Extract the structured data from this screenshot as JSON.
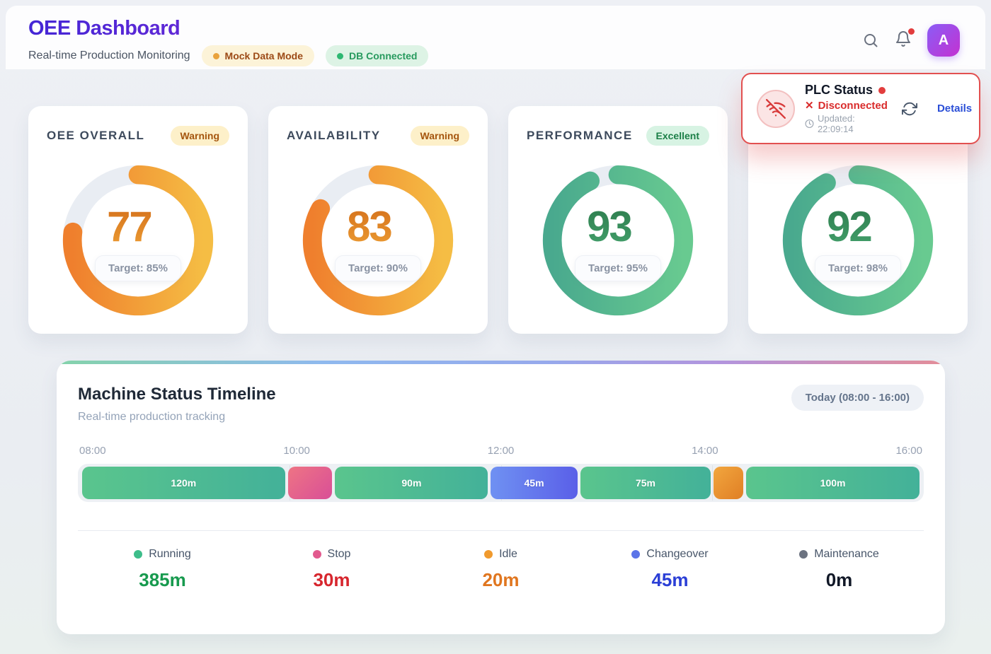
{
  "header": {
    "title": "OEE Dashboard",
    "subtitle": "Real-time Production Monitoring",
    "mock_badge": "Mock Data Mode",
    "db_badge": "DB Connected",
    "icons": [
      "search-icon",
      "bell-icon"
    ],
    "avatar_letter": "A"
  },
  "plc": {
    "icon": "wifi-off-icon",
    "title": "PLC Status",
    "status": "Disconnected",
    "updated": "Updated: 22:09:14",
    "details_label": "Details"
  },
  "kpis": [
    {
      "title": "OEE OVERALL",
      "badge": "Warning",
      "value": 77,
      "unit": "%",
      "target": "Target: 85%",
      "theme": "orange"
    },
    {
      "title": "AVAILABILITY",
      "badge": "Warning",
      "value": 83,
      "unit": "%",
      "target": "Target: 90%",
      "theme": "orange"
    },
    {
      "title": "PERFORMANCE",
      "badge": "Excellent",
      "value": 93,
      "unit": "%",
      "target": "Target: 95%",
      "theme": "green"
    },
    {
      "title": "",
      "badge": "",
      "value": 92,
      "unit": "%",
      "target": "Target: 98%",
      "theme": "green"
    }
  ],
  "timeline": {
    "title": "Machine Status Timeline",
    "subtitle": "Real-time production tracking",
    "range_label": "Today (08:00 - 16:00)",
    "axis": [
      "08:00",
      "10:00",
      "12:00",
      "14:00",
      "16:00"
    ],
    "segments": [
      {
        "minutes": 120,
        "label": "120m",
        "status": "running"
      },
      {
        "minutes": 30,
        "label": "",
        "status": "stop"
      },
      {
        "minutes": 90,
        "label": "90m",
        "status": "running"
      },
      {
        "minutes": 45,
        "label": "45m",
        "status": "changeover"
      },
      {
        "minutes": 75,
        "label": "75m",
        "status": "running"
      },
      {
        "minutes": 20,
        "label": "",
        "status": "idle"
      },
      {
        "minutes": 100,
        "label": "100m",
        "status": "running"
      }
    ],
    "legend": [
      {
        "label": "Running",
        "value": "385m",
        "color": "#3dbd8a",
        "value_color": "#179a4e"
      },
      {
        "label": "Stop",
        "value": "30m",
        "color": "#e25a8e",
        "value_color": "#d7262e"
      },
      {
        "label": "Idle",
        "value": "20m",
        "color": "#f09a2e",
        "value_color": "#e0761f"
      },
      {
        "label": "Changeover",
        "value": "45m",
        "color": "#5b74e8",
        "value_color": "#2b3fd6"
      },
      {
        "label": "Maintenance",
        "value": "0m",
        "color": "#6b7280",
        "value_color": "#111827"
      }
    ]
  }
}
